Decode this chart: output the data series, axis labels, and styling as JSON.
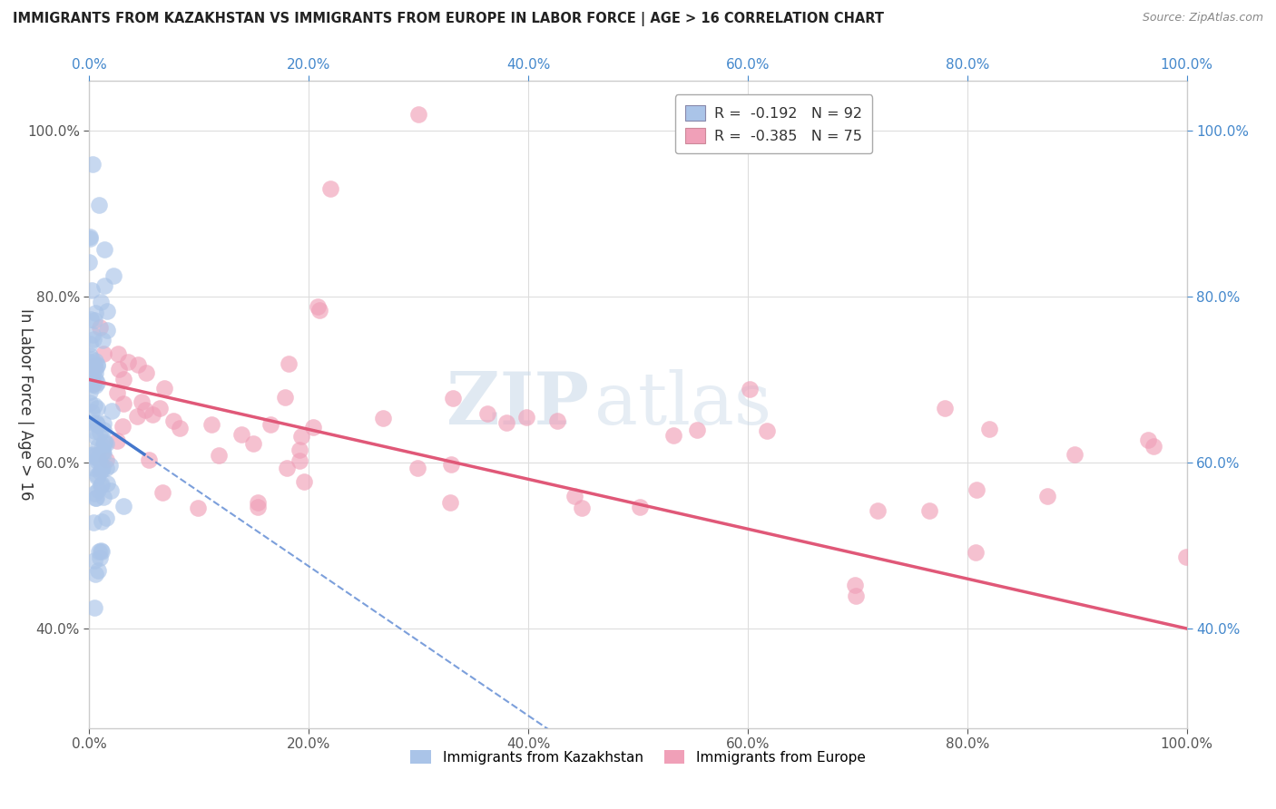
{
  "title": "IMMIGRANTS FROM KAZAKHSTAN VS IMMIGRANTS FROM EUROPE IN LABOR FORCE | AGE > 16 CORRELATION CHART",
  "source": "Source: ZipAtlas.com",
  "ylabel": "In Labor Force | Age > 16",
  "legend_entries": [
    {
      "label": "R =  -0.192   N = 92",
      "color": "#aac4e8"
    },
    {
      "label": "R =  -0.385   N = 75",
      "color": "#f0a0b8"
    }
  ],
  "watermark_zip": "ZIP",
  "watermark_atlas": "atlas",
  "kazakhstan_color": "#aac4e8",
  "europe_color": "#f0a0b8",
  "kazakhstan_trend_color": "#4477cc",
  "europe_trend_color": "#e05878",
  "xlim": [
    0.0,
    1.0
  ],
  "ylim": [
    0.28,
    1.06
  ],
  "x_ticks": [
    0.0,
    0.2,
    0.4,
    0.6,
    0.8,
    1.0
  ],
  "y_ticks": [
    0.4,
    0.6,
    0.8,
    1.0
  ],
  "background_color": "#ffffff",
  "grid_color": "#dddddd",
  "right_tick_color": "#4488cc",
  "top_tick_color": "#4488cc"
}
